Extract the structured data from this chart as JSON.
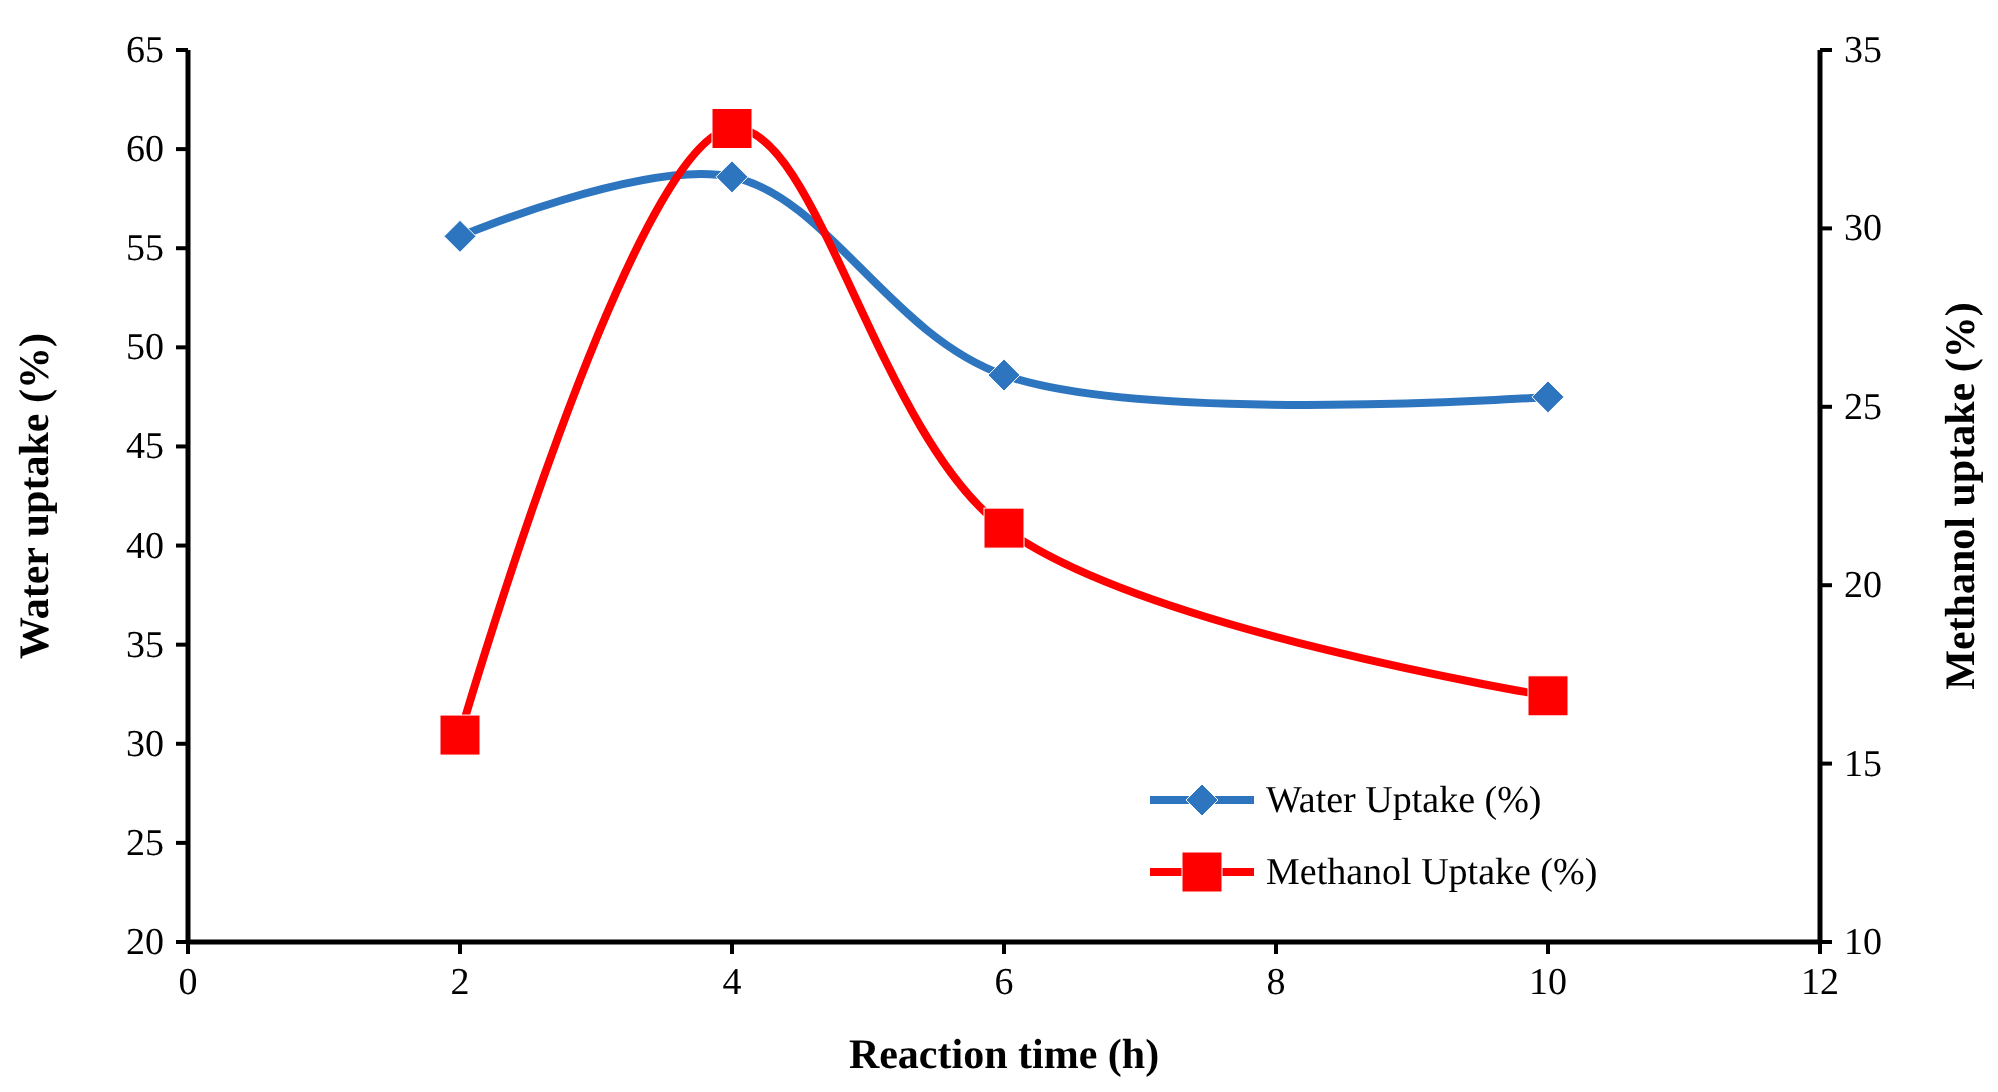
{
  "chart_data": {
    "type": "line",
    "xlabel": "Reaction time (h)",
    "ylabel": "Water uptake (%)",
    "y2label": "Methanol uptake (%)",
    "x": [
      2,
      4,
      6,
      10
    ],
    "series": [
      {
        "name": "Water Uptake (%)",
        "color": "#2e75c0",
        "values": [
          55.6,
          58.6,
          48.6,
          47.5
        ],
        "marker": "diamond"
      },
      {
        "name": "Methanol Uptake (%)",
        "color": "#ff0000",
        "values": [
          15.8,
          32.8,
          21.6,
          16.9
        ],
        "marker": "square",
        "axis": "y2"
      }
    ],
    "xlim": [
      0,
      12
    ],
    "xticks": [
      0,
      2,
      4,
      6,
      8,
      10,
      12
    ],
    "ylim": [
      20,
      65
    ],
    "yticks": [
      20,
      25,
      30,
      35,
      40,
      45,
      50,
      55,
      60,
      65
    ],
    "y2lim": [
      10,
      35
    ],
    "y2ticks": [
      10,
      15,
      20,
      25,
      30,
      35
    ],
    "grid": false,
    "legend": "bottom right"
  }
}
